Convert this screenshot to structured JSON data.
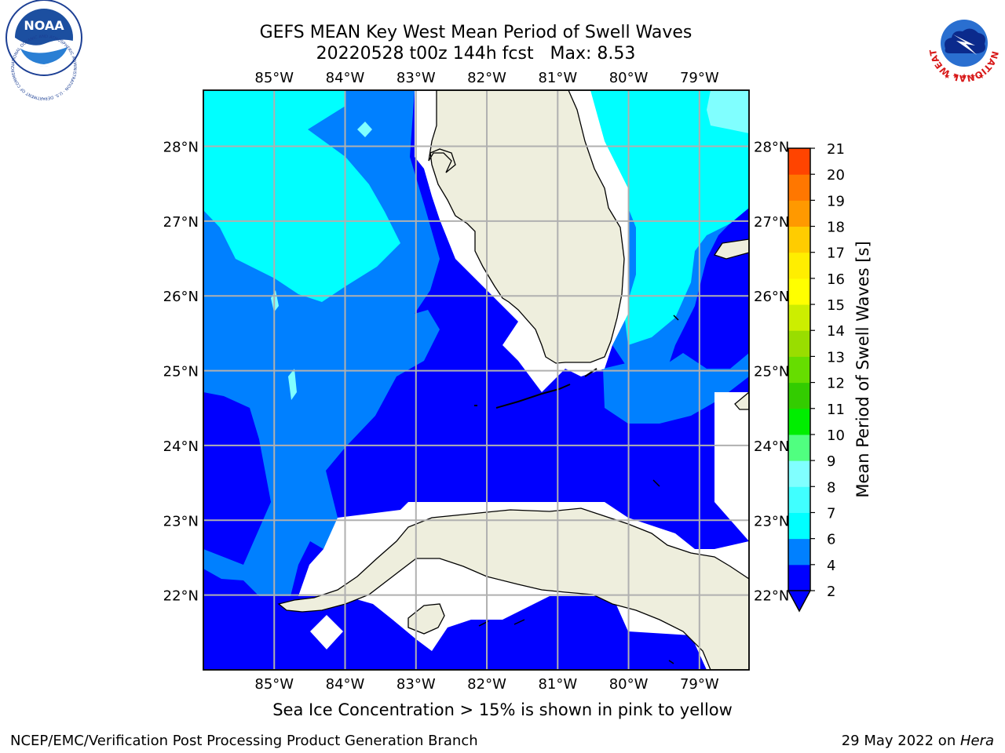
{
  "title": {
    "line1": "GEFS MEAN Key West Mean Period of Swell Waves",
    "line2": "20220528 t00z 144h fcst   Max: 8.53"
  },
  "map": {
    "lon_ticks": [
      {
        "value": -85,
        "label": "85°W"
      },
      {
        "value": -84,
        "label": "84°W"
      },
      {
        "value": -83,
        "label": "83°W"
      },
      {
        "value": -82,
        "label": "82°W"
      },
      {
        "value": -81,
        "label": "81°W"
      },
      {
        "value": -80,
        "label": "80°W"
      },
      {
        "value": -79,
        "label": "79°W"
      }
    ],
    "lat_ticks": [
      {
        "value": 28,
        "label": "28°N"
      },
      {
        "value": 27,
        "label": "27°N"
      },
      {
        "value": 26,
        "label": "26°N"
      },
      {
        "value": 25,
        "label": "25°N"
      },
      {
        "value": 24,
        "label": "24°N"
      },
      {
        "value": 23,
        "label": "23°N"
      },
      {
        "value": 22,
        "label": "22°N"
      }
    ],
    "extent": {
      "lon_min": -86,
      "lon_max": -78.3,
      "lat_min": 21.0,
      "lat_max": 28.75
    },
    "grid": true
  },
  "colorbar": {
    "label": "Mean Period of Swell Waves [s]",
    "ticks": [
      "2",
      "4",
      "6",
      "7",
      "8",
      "9",
      "10",
      "11",
      "12",
      "13",
      "14",
      "15",
      "16",
      "17",
      "18",
      "19",
      "20",
      "21"
    ],
    "colors": [
      "#0000ff",
      "#0080ff",
      "#00ffff",
      "#40ffff",
      "#80ffff",
      "#50ff80",
      "#00ee00",
      "#33cc00",
      "#66dd00",
      "#99dd00",
      "#ccee00",
      "#ffff00",
      "#ffee00",
      "#ffcc00",
      "#ff9900",
      "#ff7700",
      "#ff4400",
      "#ff0000"
    ],
    "extend_color": "#0000ff"
  },
  "colors": {
    "land": "#eeeedd",
    "missing": "#ffffff",
    "period_lt4": "#0000ff",
    "period_4_6": "#0080ff",
    "period_6_7": "#00ffff",
    "period_7_8": "#80ffff"
  },
  "footer": {
    "caption": "Sea Ice Concentration > 15% is shown in pink to yellow",
    "left": "NCEP/EMC/Verification Post Processing Product Generation Branch",
    "right_date": "29 May 2022 on ",
    "right_host": "Hera"
  },
  "logos": {
    "noaa_text": "NOAA",
    "noaa_ring": "NATIONAL OCEANIC AND ATMOSPHERIC ADMINISTRATION · U.S. DEPARTMENT OF COMMERCE",
    "nws_ring": "NATIONAL WEATHER SERVICE"
  }
}
